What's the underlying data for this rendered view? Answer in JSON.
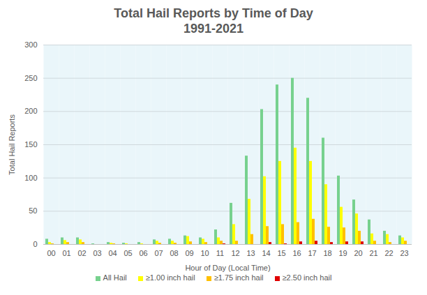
{
  "chart_data": {
    "type": "bar",
    "title": "Total Hail Reports by Time of Day",
    "subtitle": "1991-2021",
    "x_label": "Hour of Day (Local Time)",
    "y_label": "Total Hail Reports",
    "categories": [
      "00",
      "01",
      "02",
      "03",
      "04",
      "05",
      "06",
      "07",
      "08",
      "09",
      "10",
      "11",
      "12",
      "13",
      "14",
      "15",
      "16",
      "17",
      "18",
      "19",
      "20",
      "21",
      "22",
      "23"
    ],
    "series": [
      {
        "name": "All Hail",
        "color": "#77d18e",
        "values": [
          8,
          10,
          10,
          1,
          3,
          2,
          3,
          7,
          8,
          13,
          10,
          22,
          62,
          133,
          203,
          240,
          250,
          220,
          160,
          103,
          67,
          37,
          20,
          13
        ]
      },
      {
        "name": "≥1.00 inch hail",
        "color": "#ffff00",
        "values": [
          3,
          6,
          7,
          0,
          2,
          1,
          1,
          5,
          5,
          12,
          8,
          10,
          30,
          68,
          102,
          125,
          145,
          125,
          90,
          56,
          46,
          16,
          15,
          10
        ]
      },
      {
        "name": "≥1.75 inch hail",
        "color": "#ffc000",
        "values": [
          1,
          3,
          3,
          0,
          1,
          0,
          0,
          2,
          2,
          4,
          3,
          5,
          5,
          15,
          27,
          30,
          33,
          38,
          26,
          25,
          20,
          5,
          3,
          5
        ]
      },
      {
        "name": "≥2.50 inch hail",
        "color": "#e00000",
        "values": [
          0,
          0,
          0,
          0,
          0,
          0,
          0,
          0,
          0,
          0,
          0,
          1,
          0,
          0,
          3,
          1,
          4,
          5,
          3,
          4,
          4,
          0,
          0,
          0
        ]
      }
    ],
    "ylim": [
      0,
      300
    ],
    "yticks": [
      0,
      50,
      100,
      150,
      200,
      250,
      300
    ],
    "grid": true,
    "legend": "bottom"
  }
}
